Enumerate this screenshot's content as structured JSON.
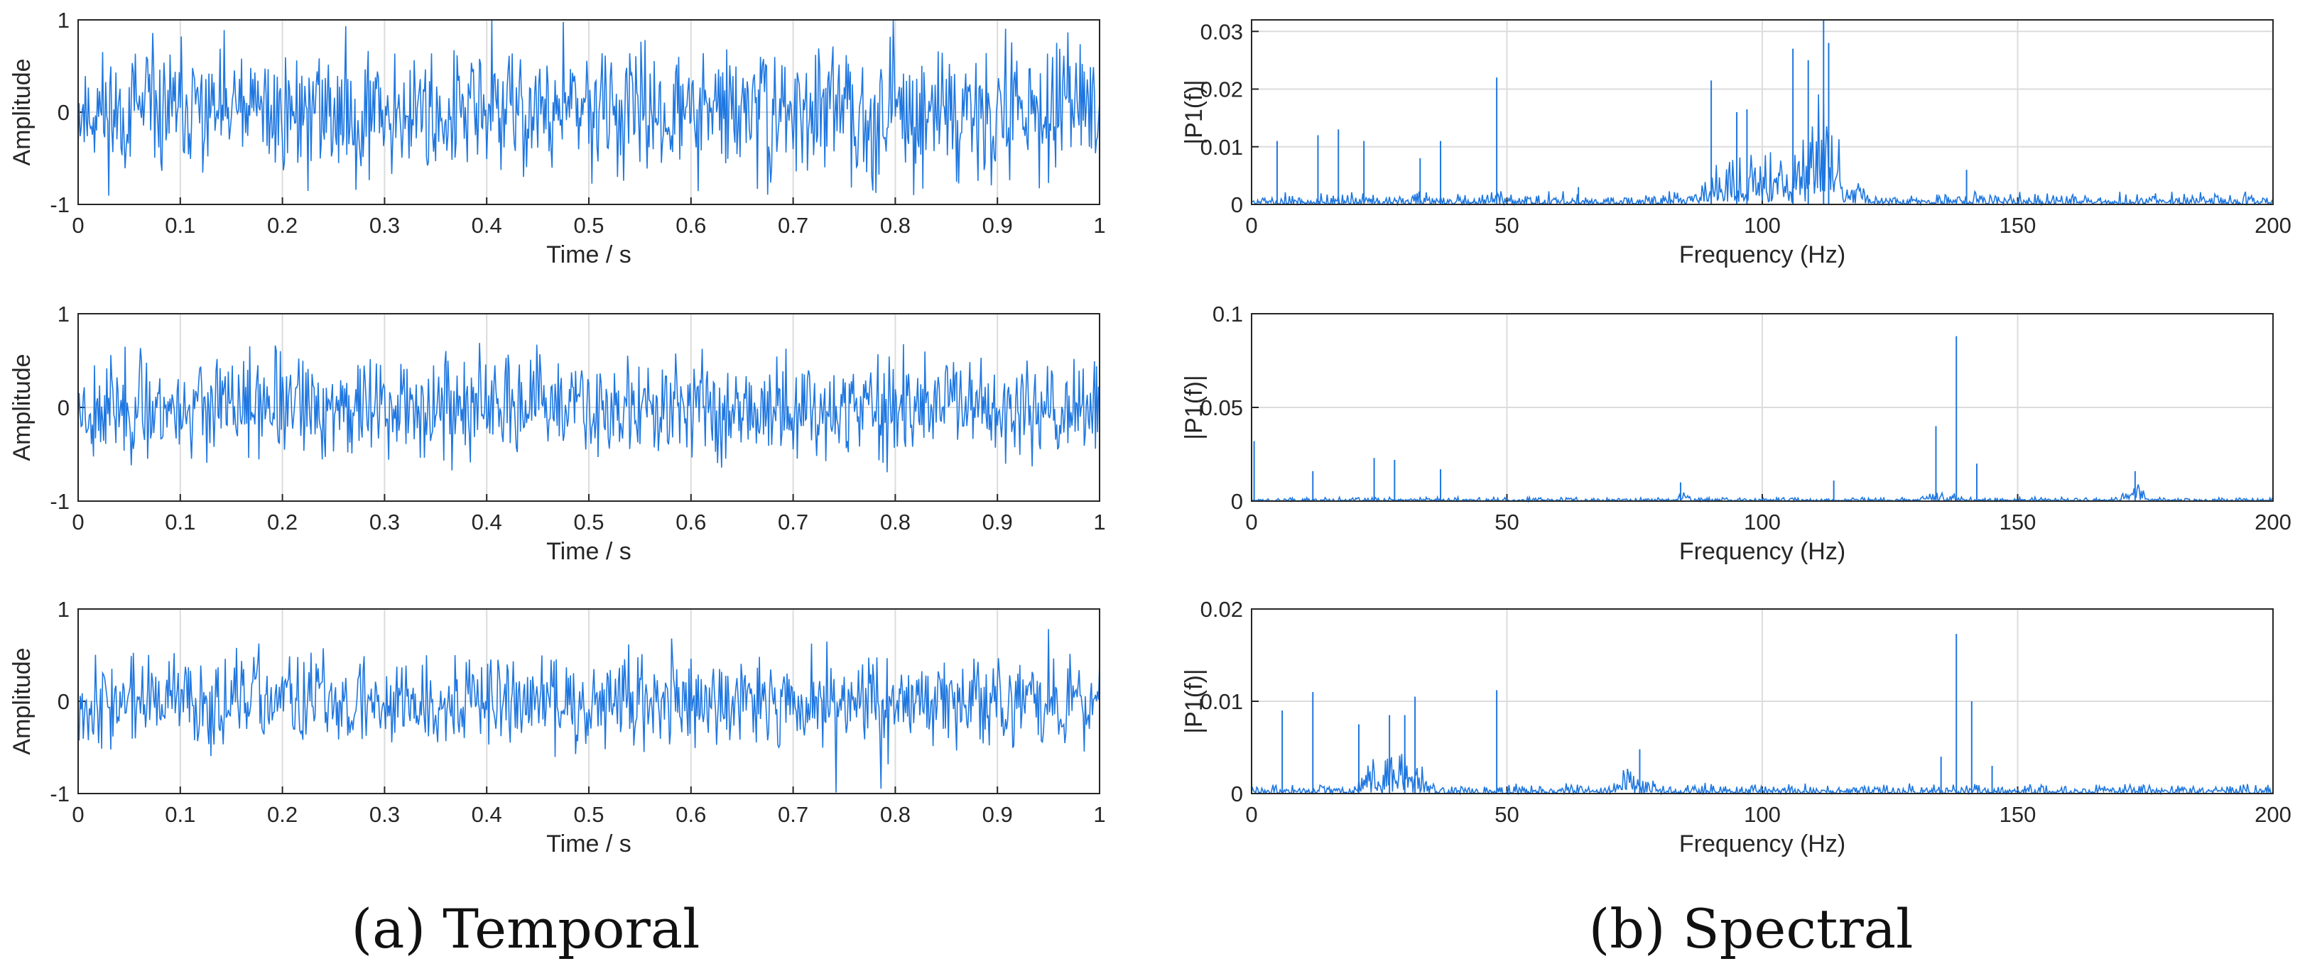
{
  "figure": {
    "caption_left": "(a) Temporal",
    "caption_right": "(b) Spectral",
    "signal_color": "#1f77e0",
    "axes_color": "#262626",
    "grid_color": "#dcdcdc"
  },
  "chart_data": [
    {
      "id": "temporal-1",
      "type": "line",
      "column": "temporal",
      "row": 0,
      "xlabel": "Time / s",
      "ylabel": "Amplitude",
      "xlim": [
        0,
        1
      ],
      "ylim": [
        -1,
        1
      ],
      "xticks": [
        "0",
        "0.1",
        "0.2",
        "0.3",
        "0.4",
        "0.5",
        "0.6",
        "0.7",
        "0.8",
        "0.9",
        "1"
      ],
      "yticks": [
        "-1",
        "0",
        "1"
      ],
      "grid": true,
      "n_samples": 1000,
      "amplitude_envelope": 0.75,
      "seed": 11,
      "description_series": "dense vibration signal"
    },
    {
      "id": "temporal-2",
      "type": "line",
      "column": "temporal",
      "row": 1,
      "xlabel": "Time / s",
      "ylabel": "Amplitude",
      "xlim": [
        0,
        1
      ],
      "ylim": [
        -1,
        1
      ],
      "xticks": [
        "0",
        "0.1",
        "0.2",
        "0.3",
        "0.4",
        "0.5",
        "0.6",
        "0.7",
        "0.8",
        "0.9",
        "1"
      ],
      "yticks": [
        "-1",
        "0",
        "1"
      ],
      "grid": true,
      "n_samples": 1000,
      "amplitude_envelope": 0.6,
      "seed": 23
    },
    {
      "id": "temporal-3",
      "type": "line",
      "column": "temporal",
      "row": 2,
      "xlabel": "Time / s",
      "ylabel": "Amplitude",
      "xlim": [
        0,
        1
      ],
      "ylim": [
        -1,
        1
      ],
      "xticks": [
        "0",
        "0.1",
        "0.2",
        "0.3",
        "0.4",
        "0.5",
        "0.6",
        "0.7",
        "0.8",
        "0.9",
        "1"
      ],
      "yticks": [
        "-1",
        "0",
        "1"
      ],
      "grid": true,
      "n_samples": 1000,
      "amplitude_envelope": 0.55,
      "seed": 37
    },
    {
      "id": "spectral-1",
      "type": "line",
      "column": "spectral",
      "row": 0,
      "xlabel": "Frequency (Hz)",
      "ylabel": "|P1(f)|",
      "xlim": [
        0,
        200
      ],
      "ylim": [
        0,
        0.032
      ],
      "xticks": [
        "0",
        "50",
        "100",
        "150",
        "200"
      ],
      "yticks": [
        "0",
        "0.01",
        "0.02",
        "0.03"
      ],
      "ytick_values": [
        0,
        0.01,
        0.02,
        0.03
      ],
      "grid": true,
      "noise_floor": 0.0012,
      "seed": 5,
      "bands": [
        {
          "from": 85,
          "to": 122,
          "level": 0.009
        },
        {
          "from": 108,
          "to": 116,
          "level": 0.014
        }
      ],
      "peaks": [
        {
          "f": 5,
          "a": 0.011
        },
        {
          "f": 13,
          "a": 0.012
        },
        {
          "f": 17,
          "a": 0.013
        },
        {
          "f": 22,
          "a": 0.011
        },
        {
          "f": 33,
          "a": 0.008
        },
        {
          "f": 37,
          "a": 0.011
        },
        {
          "f": 48,
          "a": 0.022
        },
        {
          "f": 64,
          "a": 0.003
        },
        {
          "f": 90,
          "a": 0.0215
        },
        {
          "f": 95,
          "a": 0.016
        },
        {
          "f": 97,
          "a": 0.0165
        },
        {
          "f": 106,
          "a": 0.027
        },
        {
          "f": 109,
          "a": 0.025
        },
        {
          "f": 112,
          "a": 0.032
        },
        {
          "f": 113,
          "a": 0.028
        },
        {
          "f": 140,
          "a": 0.006
        }
      ]
    },
    {
      "id": "spectral-2",
      "type": "line",
      "column": "spectral",
      "row": 1,
      "xlabel": "Frequency (Hz)",
      "ylabel": "|P1(f)|",
      "xlim": [
        0,
        200
      ],
      "ylim": [
        0,
        0.1
      ],
      "xticks": [
        "0",
        "50",
        "100",
        "150",
        "200"
      ],
      "yticks": [
        "0",
        "0.05",
        "0.1"
      ],
      "ytick_values": [
        0,
        0.05,
        0.1
      ],
      "grid": true,
      "noise_floor": 0.0012,
      "seed": 17,
      "bands": [
        {
          "from": 83,
          "to": 86,
          "level": 0.006
        },
        {
          "from": 130,
          "to": 140,
          "level": 0.004
        },
        {
          "from": 170,
          "to": 176,
          "level": 0.008
        }
      ],
      "peaks": [
        {
          "f": 0.5,
          "a": 0.032
        },
        {
          "f": 12,
          "a": 0.016
        },
        {
          "f": 24,
          "a": 0.023
        },
        {
          "f": 28,
          "a": 0.022
        },
        {
          "f": 37,
          "a": 0.017
        },
        {
          "f": 84,
          "a": 0.01
        },
        {
          "f": 114,
          "a": 0.011
        },
        {
          "f": 134,
          "a": 0.04
        },
        {
          "f": 138,
          "a": 0.088
        },
        {
          "f": 142,
          "a": 0.02
        },
        {
          "f": 173,
          "a": 0.016
        }
      ]
    },
    {
      "id": "spectral-3",
      "type": "line",
      "column": "spectral",
      "row": 2,
      "xlabel": "Frequency (Hz)",
      "ylabel": "|P1(f)|",
      "xlim": [
        0,
        200
      ],
      "ylim": [
        0,
        0.02
      ],
      "xticks": [
        "0",
        "50",
        "100",
        "150",
        "200"
      ],
      "yticks": [
        "0",
        "0.01",
        "0.02"
      ],
      "ytick_values": [
        0,
        0.01,
        0.02
      ],
      "grid": true,
      "noise_floor": 0.0006,
      "seed": 29,
      "bands": [
        {
          "from": 20,
          "to": 36,
          "level": 0.004
        },
        {
          "from": 70,
          "to": 80,
          "level": 0.0025
        }
      ],
      "peaks": [
        {
          "f": 6,
          "a": 0.009
        },
        {
          "f": 12,
          "a": 0.011
        },
        {
          "f": 21,
          "a": 0.0075
        },
        {
          "f": 27,
          "a": 0.0085
        },
        {
          "f": 30,
          "a": 0.0085
        },
        {
          "f": 32,
          "a": 0.0105
        },
        {
          "f": 48,
          "a": 0.0112
        },
        {
          "f": 76,
          "a": 0.0048
        },
        {
          "f": 135,
          "a": 0.004
        },
        {
          "f": 138,
          "a": 0.0173
        },
        {
          "f": 141,
          "a": 0.01
        },
        {
          "f": 145,
          "a": 0.003
        }
      ]
    }
  ]
}
